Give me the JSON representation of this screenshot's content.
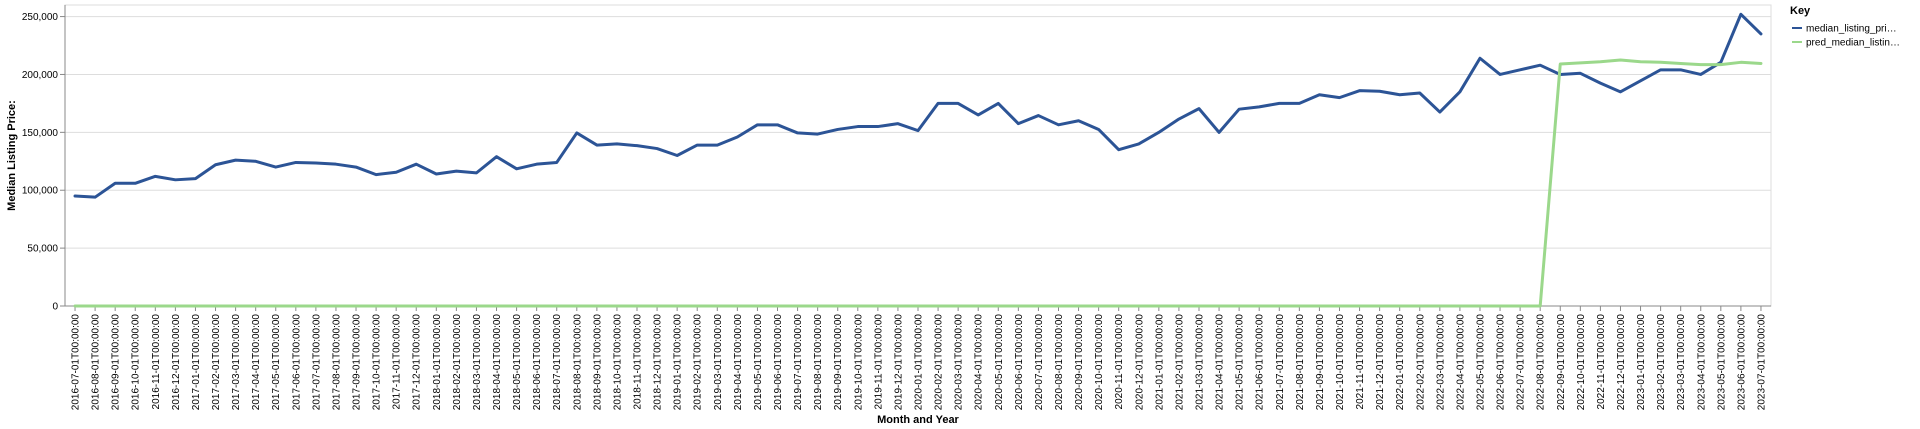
{
  "chart_data": {
    "type": "line",
    "xlabel": "Month and Year",
    "ylabel": "Median Listing Price:",
    "ylim": [
      0,
      260000
    ],
    "yticks": [
      0,
      50000,
      100000,
      150000,
      200000,
      250000
    ],
    "ytick_labels": [
      "0",
      "50,000",
      "100,000",
      "150,000",
      "200,000",
      "250,000"
    ],
    "grid": true,
    "legend": {
      "title": "Key",
      "position": "right"
    },
    "x": [
      "2016-07-01T00:00:00",
      "2016-08-01T00:00:00",
      "2016-09-01T00:00:00",
      "2016-10-01T00:00:00",
      "2016-11-01T00:00:00",
      "2016-12-01T00:00:00",
      "2017-01-01T00:00:00",
      "2017-02-01T00:00:00",
      "2017-03-01T00:00:00",
      "2017-04-01T00:00:00",
      "2017-05-01T00:00:00",
      "2017-06-01T00:00:00",
      "2017-07-01T00:00:00",
      "2017-08-01T00:00:00",
      "2017-09-01T00:00:00",
      "2017-10-01T00:00:00",
      "2017-11-01T00:00:00",
      "2017-12-01T00:00:00",
      "2018-01-01T00:00:00",
      "2018-02-01T00:00:00",
      "2018-03-01T00:00:00",
      "2018-04-01T00:00:00",
      "2018-05-01T00:00:00",
      "2018-06-01T00:00:00",
      "2018-07-01T00:00:00",
      "2018-08-01T00:00:00",
      "2018-09-01T00:00:00",
      "2018-10-01T00:00:00",
      "2018-11-01T00:00:00",
      "2018-12-01T00:00:00",
      "2019-01-01T00:00:00",
      "2019-02-01T00:00:00",
      "2019-03-01T00:00:00",
      "2019-04-01T00:00:00",
      "2019-05-01T00:00:00",
      "2019-06-01T00:00:00",
      "2019-07-01T00:00:00",
      "2019-08-01T00:00:00",
      "2019-09-01T00:00:00",
      "2019-10-01T00:00:00",
      "2019-11-01T00:00:00",
      "2019-12-01T00:00:00",
      "2020-01-01T00:00:00",
      "2020-02-01T00:00:00",
      "2020-03-01T00:00:00",
      "2020-04-01T00:00:00",
      "2020-05-01T00:00:00",
      "2020-06-01T00:00:00",
      "2020-07-01T00:00:00",
      "2020-08-01T00:00:00",
      "2020-09-01T00:00:00",
      "2020-10-01T00:00:00",
      "2020-11-01T00:00:00",
      "2020-12-01T00:00:00",
      "2021-01-01T00:00:00",
      "2021-02-01T00:00:00",
      "2021-03-01T00:00:00",
      "2021-04-01T00:00:00",
      "2021-05-01T00:00:00",
      "2021-06-01T00:00:00",
      "2021-07-01T00:00:00",
      "2021-08-01T00:00:00",
      "2021-09-01T00:00:00",
      "2021-10-01T00:00:00",
      "2021-11-01T00:00:00",
      "2021-12-01T00:00:00",
      "2022-01-01T00:00:00",
      "2022-02-01T00:00:00",
      "2022-03-01T00:00:00",
      "2022-04-01T00:00:00",
      "2022-05-01T00:00:00",
      "2022-06-01T00:00:00",
      "2022-07-01T00:00:00",
      "2022-08-01T00:00:00",
      "2022-09-01T00:00:00",
      "2022-10-01T00:00:00",
      "2022-11-01T00:00:00",
      "2022-12-01T00:00:00",
      "2023-01-01T00:00:00",
      "2023-02-01T00:00:00",
      "2023-03-01T00:00:00",
      "2023-04-01T00:00:00",
      "2023-05-01T00:00:00",
      "2023-06-01T00:00:00",
      "2023-07-01T00:00:00"
    ],
    "series": [
      {
        "name": "median_listing_pri…",
        "color": "#2c5496",
        "values": [
          95000,
          94000,
          106000,
          106000,
          112000,
          109000,
          110000,
          122000,
          126000,
          125000,
          120000,
          124000,
          123500,
          122500,
          120000,
          113500,
          115500,
          122500,
          114000,
          116500,
          115000,
          129000,
          118500,
          122500,
          124000,
          149500,
          139000,
          140000,
          138500,
          136000,
          130000,
          139000,
          139000,
          146000,
          156500,
          156500,
          149500,
          148500,
          152500,
          155000,
          155000,
          157500,
          151500,
          175000,
          175000,
          165000,
          175000,
          157500,
          164500,
          156500,
          160000,
          152500,
          135000,
          140000,
          150000,
          161500,
          170500,
          150000,
          170000,
          172000,
          175000,
          175000,
          182500,
          180000,
          186000,
          185500,
          182500,
          184000,
          167500,
          185000,
          214000,
          200000,
          204000,
          208000,
          200000,
          201000,
          192500,
          185000,
          194500,
          204000,
          204000,
          200000,
          210500,
          252000,
          235000
        ]
      },
      {
        "name": "pred_median_listin…",
        "color": "#9bd88b",
        "values": [
          0,
          0,
          0,
          0,
          0,
          0,
          0,
          0,
          0,
          0,
          0,
          0,
          0,
          0,
          0,
          0,
          0,
          0,
          0,
          0,
          0,
          0,
          0,
          0,
          0,
          0,
          0,
          0,
          0,
          0,
          0,
          0,
          0,
          0,
          0,
          0,
          0,
          0,
          0,
          0,
          0,
          0,
          0,
          0,
          0,
          0,
          0,
          0,
          0,
          0,
          0,
          0,
          0,
          0,
          0,
          0,
          0,
          0,
          0,
          0,
          0,
          0,
          0,
          0,
          0,
          0,
          0,
          0,
          0,
          0,
          0,
          0,
          0,
          0,
          209000,
          210000,
          211000,
          212500,
          211000,
          210500,
          209500,
          208500,
          208500,
          210500,
          209500
        ]
      }
    ]
  }
}
